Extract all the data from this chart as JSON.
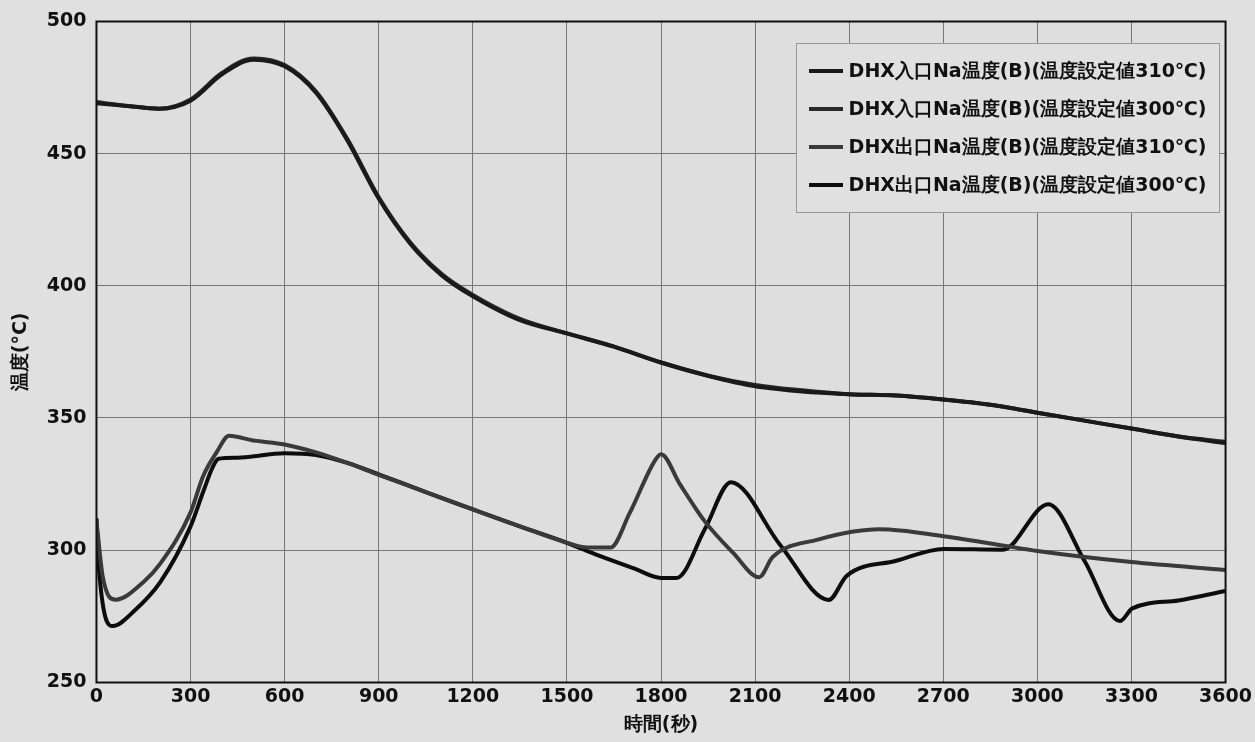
{
  "chart_data": {
    "type": "line",
    "xlabel": "時間(秒)",
    "ylabel": "温度(°C)",
    "xlim": [
      0,
      3600
    ],
    "ylim": [
      250,
      500
    ],
    "xticks": [
      0,
      300,
      600,
      900,
      1200,
      1500,
      1800,
      2100,
      2400,
      2700,
      3000,
      3300,
      3600
    ],
    "yticks": [
      250,
      300,
      350,
      400,
      450,
      500
    ],
    "grid": true,
    "legend": "top right",
    "marker": "none",
    "line_style": "solid",
    "series": [
      {
        "name": "DHX入口Na温度(B)(温度設定値310℃)",
        "color": "#1a1a1a",
        "x": [
          0,
          100,
          200,
          300,
          400,
          500,
          600,
          700,
          800,
          900,
          1000,
          1100,
          1200,
          1350,
          1500,
          1650,
          1800,
          1950,
          2100,
          2250,
          2400,
          2550,
          2700,
          2850,
          3000,
          3150,
          3300,
          3450,
          3600
        ],
        "values": [
          469,
          468,
          467,
          470,
          480,
          485.5,
          483,
          473,
          455,
          433,
          416,
          404,
          396,
          387,
          382,
          377,
          371,
          366,
          362,
          360,
          359,
          358.5,
          357,
          355,
          352,
          349,
          346,
          343,
          340.5
        ]
      },
      {
        "name": "DHX入口Na温度(B)(温度設定値300℃)",
        "color": "#2b2b2b",
        "x": [
          0,
          100,
          200,
          300,
          400,
          500,
          600,
          700,
          800,
          900,
          1000,
          1100,
          1200,
          1350,
          1500,
          1650,
          1800,
          1950,
          2100,
          2250,
          2400,
          2550,
          2700,
          2850,
          3000,
          3150,
          3300,
          3450,
          3600
        ],
        "values": [
          469.5,
          468,
          467,
          470.5,
          480.5,
          486,
          483.5,
          473.5,
          455.5,
          433.5,
          416.5,
          404.5,
          396.5,
          387.5,
          382,
          377,
          371,
          366,
          362.5,
          360.5,
          359,
          358.5,
          357,
          355,
          352,
          349,
          346,
          343,
          341
        ]
      },
      {
        "name": "DHX出口Na温度(B)(温度設定値310℃)",
        "color": "#3a3a3a",
        "x": [
          0,
          20,
          61,
          150,
          204,
          300,
          340,
          383,
          423,
          500,
          600,
          700,
          800,
          900,
          1050,
          1200,
          1350,
          1500,
          1565,
          1639,
          1700,
          1781,
          1800,
          1860,
          1939,
          2030,
          2113,
          2156,
          2300,
          2497,
          2700,
          3000,
          3300,
          3600
        ],
        "values": [
          311,
          290,
          281.3,
          288,
          295,
          314.3,
          328,
          337,
          343.3,
          341.5,
          340,
          337,
          333,
          328.5,
          322,
          315.4,
          309,
          302.8,
          301,
          301,
          314,
          334,
          336.3,
          325,
          311,
          299,
          289.8,
          297.4,
          304,
          307.9,
          305.3,
          299.7,
          295.5,
          292.5
        ]
      },
      {
        "name": "DHX出口Na温度(B)(温度設定値300℃)",
        "color": "#0d0d0d",
        "x": [
          0,
          10,
          52,
          120,
          204,
          300,
          340,
          371,
          389,
          450,
          600,
          700,
          800,
          900,
          1050,
          1200,
          1350,
          1500,
          1600,
          1716,
          1800,
          1850,
          1940,
          2023,
          2180,
          2335,
          2392,
          2550,
          2702,
          2889,
          3035,
          3150,
          3263,
          3303,
          3450,
          3600
        ],
        "values": [
          312,
          290,
          271.3,
          277,
          288,
          309,
          322,
          331.5,
          334.6,
          335,
          336.7,
          336,
          333,
          328.7,
          322,
          315.4,
          309,
          302.8,
          298,
          293,
          289.5,
          289.5,
          308,
          325.7,
          302,
          281.2,
          290.3,
          296,
          300.5,
          300.2,
          317.4,
          296,
          273.2,
          278,
          281,
          284.6
        ]
      }
    ]
  }
}
